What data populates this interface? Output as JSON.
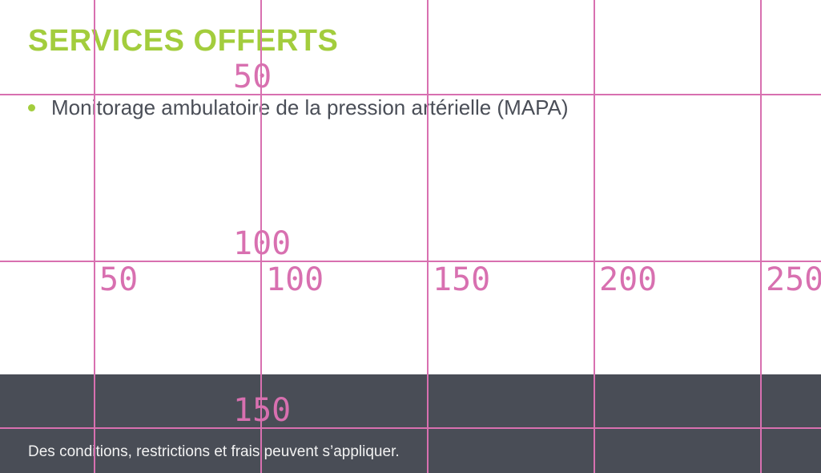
{
  "services": {
    "title": "SERVICES OFFERTS",
    "items": [
      "Monitorage ambulatoire de la pression artérielle (MAPA)"
    ]
  },
  "footer": {
    "disclaimer": "Des conditions, restrictions et frais peuvent s’appliquer."
  },
  "grid_overlay": {
    "color": "#d870b0",
    "vertical_labels": [
      "50",
      "100",
      "150"
    ],
    "horizontal_labels": [
      "50",
      "100",
      "150",
      "200",
      "250"
    ]
  },
  "colors": {
    "accent": "#a3cd3d",
    "text": "#4a4e57",
    "footer_bg": "#494d56"
  }
}
